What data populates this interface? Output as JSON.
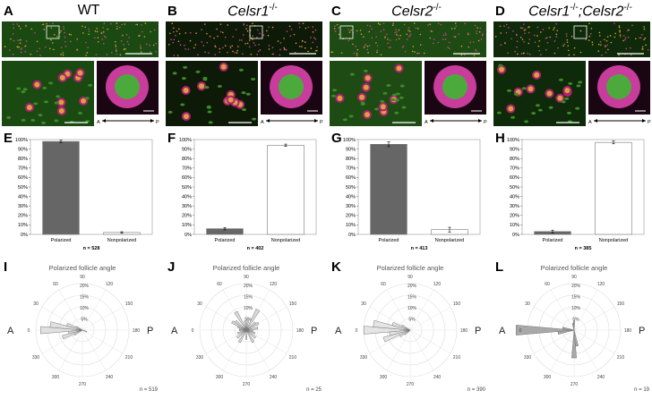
{
  "columns": [
    {
      "letter_top": "A",
      "letter_bar": "E",
      "letter_polar": "I",
      "title_main": "WT",
      "title_sup": "",
      "micro_bg": "#1a4a12",
      "chart": {
        "type": "bar",
        "categories": [
          "Polarized",
          "Nonpolarized"
        ],
        "values": [
          98,
          2
        ],
        "errors": [
          1.2,
          0.8
        ],
        "n_label": "n = 528",
        "ylim": [
          0,
          100
        ],
        "yticks": [
          "0%",
          "10%",
          "20%",
          "30%",
          "40%",
          "50%",
          "60%",
          "70%",
          "80%",
          "90%",
          "100%"
        ],
        "bar_fill": [
          "#666666",
          "#ffffff"
        ]
      },
      "polar": {
        "title": "Polarized follicle angle",
        "n_label": "n = 519",
        "rings": [
          "5%",
          "10%",
          "15%",
          "20%"
        ],
        "tint": "#e0e0e0",
        "petals": [
          [
            350,
            6
          ],
          [
            0,
            18
          ],
          [
            10,
            14
          ],
          [
            20,
            7
          ],
          [
            340,
            9
          ],
          [
            330,
            4
          ],
          [
            30,
            3
          ],
          [
            200,
            2
          ]
        ]
      }
    },
    {
      "letter_top": "B",
      "letter_bar": "F",
      "letter_polar": "J",
      "title_main": "Celsr1",
      "title_sup": "-/-",
      "micro_bg": "#0e1a08",
      "chart": {
        "type": "bar",
        "categories": [
          "Polarized",
          "Nonpolarized"
        ],
        "values": [
          6,
          94
        ],
        "errors": [
          1.2,
          1.2
        ],
        "n_label": "n = 402",
        "ylim": [
          0,
          100
        ],
        "yticks": [
          "0%",
          "10%",
          "20%",
          "30%",
          "40%",
          "50%",
          "60%",
          "70%",
          "80%",
          "90%",
          "100%"
        ],
        "bar_fill": [
          "#666666",
          "#ffffff"
        ]
      },
      "polar": {
        "title": "Polarized follicle angle",
        "n_label": "n = 25",
        "rings": [
          "5%",
          "10%",
          "15%",
          "20%"
        ],
        "tint": "#d8d8d8",
        "petals": [
          [
            60,
            9
          ],
          [
            40,
            6
          ],
          [
            30,
            7
          ],
          [
            20,
            4
          ],
          [
            10,
            3
          ],
          [
            0,
            3
          ],
          [
            340,
            4
          ],
          [
            320,
            5
          ],
          [
            300,
            6
          ],
          [
            270,
            4
          ],
          [
            240,
            6
          ],
          [
            220,
            5
          ],
          [
            200,
            4
          ],
          [
            170,
            5
          ],
          [
            150,
            6
          ],
          [
            140,
            5
          ],
          [
            120,
            10
          ],
          [
            100,
            5
          ],
          [
            80,
            4
          ],
          [
            190,
            3
          ]
        ]
      }
    },
    {
      "letter_top": "C",
      "letter_bar": "G",
      "letter_polar": "K",
      "title_main": "Celsr2",
      "title_sup": "-/-",
      "micro_bg": "#1e4a14",
      "chart": {
        "type": "bar",
        "categories": [
          "Polarized",
          "Nonpolarized"
        ],
        "values": [
          95,
          5
        ],
        "errors": [
          2.5,
          2.5
        ],
        "n_label": "n = 413",
        "ylim": [
          0,
          100
        ],
        "yticks": [
          "0%",
          "10%",
          "20%",
          "30%",
          "40%",
          "50%",
          "60%",
          "70%",
          "80%",
          "90%",
          "100%"
        ],
        "bar_fill": [
          "#666666",
          "#ffffff"
        ]
      },
      "polar": {
        "title": "Polarized follicle angle",
        "n_label": "n = 390",
        "rings": [
          "5%",
          "10%",
          "15%",
          "20%"
        ],
        "tint": "#e4e4e4",
        "petals": [
          [
            350,
            9
          ],
          [
            0,
            20
          ],
          [
            10,
            16
          ],
          [
            20,
            8
          ],
          [
            340,
            12
          ],
          [
            330,
            5
          ],
          [
            30,
            4
          ],
          [
            320,
            3
          ]
        ]
      }
    },
    {
      "letter_top": "D",
      "letter_bar": "H",
      "letter_polar": "L",
      "title_main": "Celsr1",
      "title_sup": "-/-",
      "title_main2": ";Celsr2",
      "title_sup2": "-/-",
      "micro_bg": "#0f2a0a",
      "chart": {
        "type": "bar",
        "categories": [
          "Polarized",
          "Nonpolarized"
        ],
        "values": [
          3,
          97
        ],
        "errors": [
          1.5,
          1.5
        ],
        "n_label": "n = 385",
        "ylim": [
          0,
          100
        ],
        "yticks": [
          "0%",
          "10%",
          "20%",
          "30%",
          "40%",
          "50%",
          "60%",
          "70%",
          "80%",
          "90%",
          "100%"
        ],
        "bar_fill": [
          "#666666",
          "#ffffff"
        ]
      },
      "polar": {
        "title": "Polarized follicle angle",
        "n_label": "n = 19",
        "rings": [
          "5%",
          "10%",
          "15%",
          "20%"
        ],
        "tint": "#a8a8a8",
        "petals": [
          [
            0,
            25
          ],
          [
            350,
            7
          ],
          [
            10,
            5
          ],
          [
            270,
            12
          ],
          [
            260,
            7
          ],
          [
            90,
            4
          ],
          [
            80,
            3
          ]
        ]
      }
    }
  ],
  "polar_angles": [
    "90",
    "60",
    "30",
    "0",
    "330",
    "300",
    "270",
    "240",
    "210",
    "180",
    "150",
    "120"
  ],
  "polar_ap": [
    "A",
    "P"
  ],
  "inset_axis": [
    "A",
    "P"
  ]
}
